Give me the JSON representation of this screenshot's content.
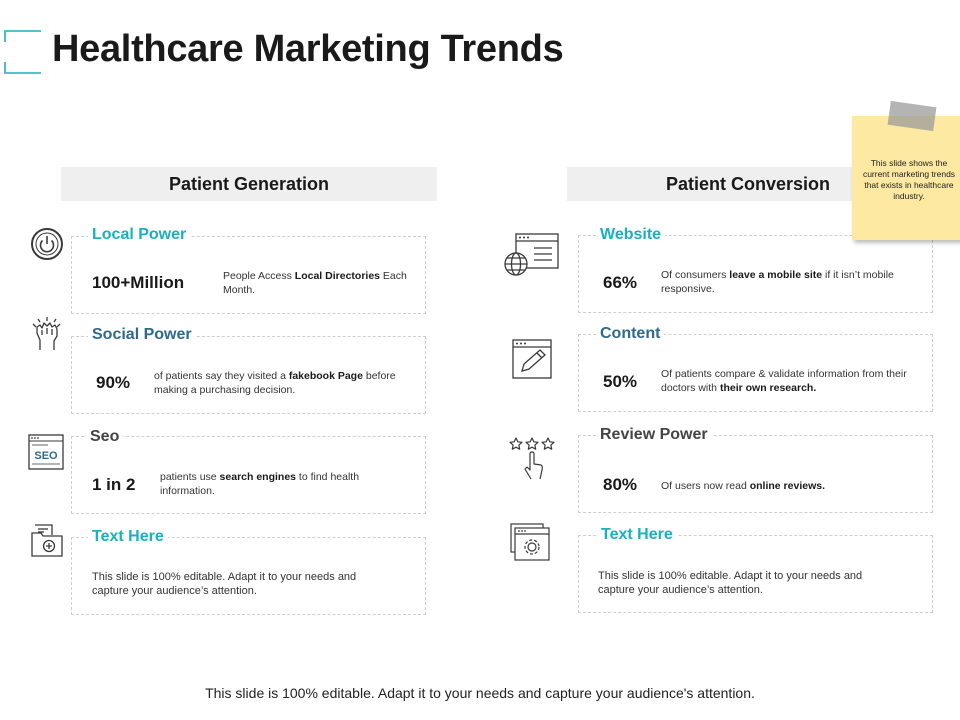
{
  "title": "Healthcare Marketing Trends",
  "columns": {
    "left_header": "Patient Generation",
    "right_header": "Patient Conversion"
  },
  "left_items": [
    {
      "title": "Local Power",
      "stat": "100+Million",
      "desc_parts": [
        "People Access ",
        "Local Directories",
        " Each Month."
      ],
      "icon": "power-icon"
    },
    {
      "title": "Social Power",
      "stat": "90%",
      "desc_parts": [
        "of patients say they visited a ",
        "fakebook Page",
        " before making a purchasing decision."
      ],
      "icon": "raised-fist-icon"
    },
    {
      "title": "Seo",
      "stat": "1 in 2",
      "desc_parts": [
        "patients use ",
        "search engines",
        " to find health information."
      ],
      "icon": "seo-browser-icon"
    },
    {
      "title": "Text Here",
      "desc": "This slide is 100% editable. Adapt it to your needs and capture your audience’s attention.",
      "icon": "medical-folder-icon"
    }
  ],
  "right_items": [
    {
      "title": "Website",
      "stat": "66%",
      "desc_parts": [
        "Of consumers ",
        "leave a mobile site",
        " if it isn’t mobile responsive."
      ],
      "icon": "website-globe-icon"
    },
    {
      "title": "Content",
      "stat": "50%",
      "desc_parts": [
        "Of patients compare & validate information from their doctors with ",
        "their own research."
      ],
      "icon": "content-edit-icon"
    },
    {
      "title": "Review Power",
      "stat": "80%",
      "desc_parts": [
        "Of users now read ",
        "online reviews."
      ],
      "icon": "star-rating-icon"
    },
    {
      "title": "Text Here",
      "desc": "This slide is 100% editable. Adapt it to your needs and capture your audience’s attention.",
      "icon": "settings-window-icon"
    }
  ],
  "sticky_note": "This slide shows the current marketing trends that exists in healthcare industry.",
  "footer": "This slide is 100% editable.  Adapt it to your needs and capture your audience's attention.",
  "colors": {
    "accent_teal": "#1ab0be",
    "accent_blue": "#2e6a8e",
    "header_bg": "#efefef",
    "sticky_bg": "#fde9a2"
  }
}
